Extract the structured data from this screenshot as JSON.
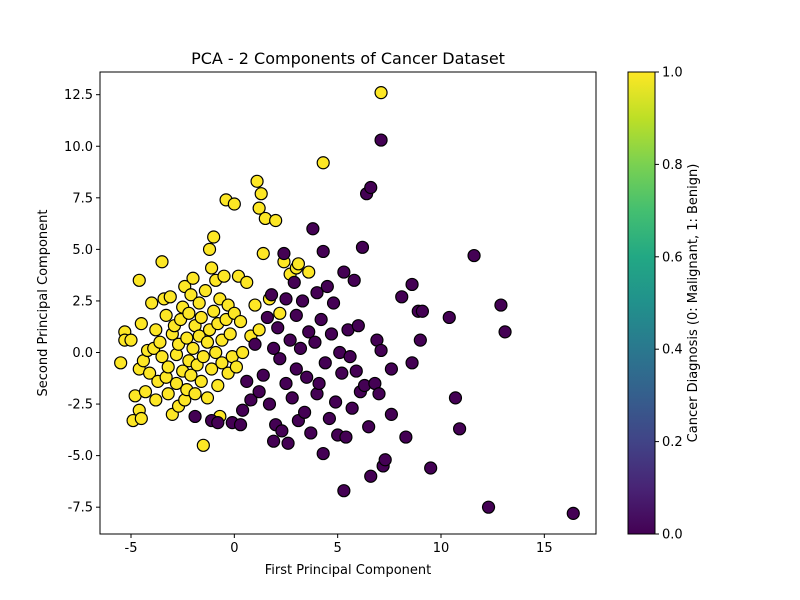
{
  "chart_data": {
    "type": "scatter",
    "title": "PCA - 2 Components of Cancer Dataset",
    "xlabel": "First Principal Component",
    "ylabel": "Second Principal Component",
    "xlim": [
      -6.5,
      17.5
    ],
    "ylim": [
      -8.8,
      13.6
    ],
    "xticks": [
      -5,
      0,
      5,
      10,
      15
    ],
    "yticks": [
      -7.5,
      -5.0,
      -2.5,
      0.0,
      2.5,
      5.0,
      7.5,
      10.0,
      12.5
    ],
    "grid": false,
    "colorbar": {
      "label": "Cancer Diagnosis (0: Malignant, 1: Benign)",
      "colormap": "viridis",
      "range": [
        0.0,
        1.0
      ],
      "ticks": [
        0.0,
        0.2,
        0.4,
        0.6,
        0.8,
        1.0
      ]
    },
    "series": [
      {
        "class_value": 1,
        "color": "#fde725",
        "points": [
          [
            -5.5,
            -0.5
          ],
          [
            -5.3,
            1.0
          ],
          [
            -5.3,
            0.6
          ],
          [
            -5.0,
            0.6
          ],
          [
            -4.9,
            -3.3
          ],
          [
            -4.8,
            -2.1
          ],
          [
            -4.6,
            -2.8
          ],
          [
            -4.5,
            -3.2
          ],
          [
            -4.6,
            3.5
          ],
          [
            -4.5,
            1.4
          ],
          [
            -4.6,
            -0.8
          ],
          [
            -4.4,
            -0.4
          ],
          [
            -4.3,
            -1.9
          ],
          [
            -4.2,
            0.1
          ],
          [
            -4.1,
            -1.0
          ],
          [
            -4.0,
            2.4
          ],
          [
            -3.9,
            0.2
          ],
          [
            -3.8,
            1.1
          ],
          [
            -3.8,
            -2.3
          ],
          [
            -3.7,
            -1.4
          ],
          [
            -3.6,
            0.5
          ],
          [
            -3.5,
            -0.2
          ],
          [
            -3.5,
            4.4
          ],
          [
            -3.4,
            2.6
          ],
          [
            -3.3,
            1.8
          ],
          [
            -3.3,
            -1.2
          ],
          [
            -3.2,
            -0.7
          ],
          [
            -3.2,
            -2.0
          ],
          [
            -3.1,
            2.7
          ],
          [
            -3.0,
            0.9
          ],
          [
            -3.0,
            -3.0
          ],
          [
            -2.9,
            1.3
          ],
          [
            -2.8,
            -0.1
          ],
          [
            -2.8,
            -1.5
          ],
          [
            -2.7,
            0.4
          ],
          [
            -2.7,
            -2.6
          ],
          [
            -2.6,
            1.6
          ],
          [
            -2.5,
            2.2
          ],
          [
            -2.5,
            -0.9
          ],
          [
            -2.4,
            3.2
          ],
          [
            -2.4,
            -2.3
          ],
          [
            -2.3,
            0.7
          ],
          [
            -2.3,
            -1.8
          ],
          [
            -2.2,
            1.9
          ],
          [
            -2.2,
            -0.4
          ],
          [
            -2.1,
            2.8
          ],
          [
            -2.1,
            -1.1
          ],
          [
            -2.0,
            0.2
          ],
          [
            -2.0,
            3.6
          ],
          [
            -1.9,
            1.3
          ],
          [
            -1.9,
            -2.0
          ],
          [
            -1.8,
            -0.6
          ],
          [
            -1.7,
            2.4
          ],
          [
            -1.7,
            0.8
          ],
          [
            -1.6,
            -1.4
          ],
          [
            -1.6,
            1.7
          ],
          [
            -1.5,
            -4.5
          ],
          [
            -1.5,
            -0.2
          ],
          [
            -1.4,
            3.0
          ],
          [
            -1.3,
            0.5
          ],
          [
            -1.3,
            -2.2
          ],
          [
            -1.2,
            1.1
          ],
          [
            -1.2,
            5.0
          ],
          [
            -1.1,
            4.1
          ],
          [
            -1.1,
            -0.8
          ],
          [
            -1.0,
            5.6
          ],
          [
            -1.0,
            2.0
          ],
          [
            -0.9,
            0.0
          ],
          [
            -0.9,
            3.5
          ],
          [
            -0.8,
            -1.6
          ],
          [
            -0.8,
            1.4
          ],
          [
            -0.7,
            -3.1
          ],
          [
            -0.7,
            2.6
          ],
          [
            -0.6,
            0.6
          ],
          [
            -0.6,
            -0.5
          ],
          [
            -0.5,
            3.7
          ],
          [
            -0.4,
            1.6
          ],
          [
            -0.4,
            7.4
          ],
          [
            -0.3,
            -1.0
          ],
          [
            -0.3,
            2.3
          ],
          [
            -0.2,
            0.9
          ],
          [
            -0.1,
            -0.2
          ],
          [
            0.0,
            7.2
          ],
          [
            0.0,
            1.9
          ],
          [
            0.1,
            -0.7
          ],
          [
            0.2,
            3.7
          ],
          [
            0.3,
            1.5
          ],
          [
            0.4,
            0.0
          ],
          [
            0.6,
            3.4
          ],
          [
            0.8,
            0.8
          ],
          [
            1.0,
            2.3
          ],
          [
            1.1,
            8.3
          ],
          [
            1.2,
            7.0
          ],
          [
            1.2,
            1.1
          ],
          [
            1.3,
            7.7
          ],
          [
            1.4,
            4.8
          ],
          [
            1.5,
            6.5
          ],
          [
            1.7,
            2.6
          ],
          [
            2.0,
            6.4
          ],
          [
            2.2,
            1.9
          ],
          [
            2.4,
            4.4
          ],
          [
            2.7,
            3.8
          ],
          [
            3.0,
            4.1
          ],
          [
            3.1,
            4.3
          ],
          [
            3.6,
            3.9
          ],
          [
            4.3,
            9.2
          ],
          [
            7.1,
            12.6
          ]
        ]
      },
      {
        "class_value": 0,
        "color": "#440154",
        "points": [
          [
            -1.9,
            -3.1
          ],
          [
            -1.1,
            -3.3
          ],
          [
            -0.8,
            -3.4
          ],
          [
            -0.1,
            -3.4
          ],
          [
            0.3,
            -3.5
          ],
          [
            0.4,
            -2.8
          ],
          [
            0.6,
            -1.4
          ],
          [
            0.8,
            -2.3
          ],
          [
            1.0,
            0.4
          ],
          [
            1.2,
            -1.9
          ],
          [
            1.4,
            -1.1
          ],
          [
            1.6,
            1.7
          ],
          [
            1.7,
            -2.5
          ],
          [
            1.8,
            2.8
          ],
          [
            1.9,
            -4.3
          ],
          [
            1.9,
            0.2
          ],
          [
            2.0,
            -3.5
          ],
          [
            2.1,
            1.2
          ],
          [
            2.2,
            -0.3
          ],
          [
            2.3,
            -3.8
          ],
          [
            2.4,
            4.8
          ],
          [
            2.5,
            -1.5
          ],
          [
            2.5,
            2.6
          ],
          [
            2.6,
            -4.4
          ],
          [
            2.7,
            0.6
          ],
          [
            2.8,
            -2.2
          ],
          [
            2.9,
            3.4
          ],
          [
            3.0,
            1.8
          ],
          [
            3.0,
            -0.8
          ],
          [
            3.1,
            -3.3
          ],
          [
            3.2,
            0.2
          ],
          [
            3.3,
            2.5
          ],
          [
            3.4,
            -2.9
          ],
          [
            3.5,
            -1.2
          ],
          [
            3.6,
            1.0
          ],
          [
            3.7,
            -3.9
          ],
          [
            3.8,
            6.0
          ],
          [
            3.9,
            0.5
          ],
          [
            4.0,
            2.9
          ],
          [
            4.0,
            -2.0
          ],
          [
            4.1,
            -1.5
          ],
          [
            4.2,
            1.6
          ],
          [
            4.3,
            -4.9
          ],
          [
            4.3,
            4.9
          ],
          [
            4.4,
            -0.5
          ],
          [
            4.5,
            3.2
          ],
          [
            4.6,
            -3.2
          ],
          [
            4.7,
            0.9
          ],
          [
            4.8,
            2.4
          ],
          [
            4.9,
            -2.4
          ],
          [
            5.0,
            -4.0
          ],
          [
            5.1,
            0.0
          ],
          [
            5.2,
            -1.0
          ],
          [
            5.3,
            3.9
          ],
          [
            5.3,
            -6.7
          ],
          [
            5.4,
            -4.1
          ],
          [
            5.5,
            1.1
          ],
          [
            5.6,
            -0.2
          ],
          [
            5.7,
            -2.7
          ],
          [
            5.8,
            3.5
          ],
          [
            5.9,
            -0.9
          ],
          [
            6.0,
            1.3
          ],
          [
            6.1,
            -1.9
          ],
          [
            6.2,
            5.1
          ],
          [
            6.3,
            -1.6
          ],
          [
            6.4,
            7.7
          ],
          [
            6.5,
            -3.6
          ],
          [
            6.6,
            8.0
          ],
          [
            6.6,
            -6.0
          ],
          [
            6.8,
            -1.5
          ],
          [
            6.9,
            0.6
          ],
          [
            7.0,
            -2.0
          ],
          [
            7.1,
            10.3
          ],
          [
            7.1,
            0.1
          ],
          [
            7.2,
            -5.5
          ],
          [
            7.3,
            -5.2
          ],
          [
            7.6,
            -0.8
          ],
          [
            7.6,
            -3.0
          ],
          [
            8.1,
            2.7
          ],
          [
            8.3,
            -4.1
          ],
          [
            8.6,
            3.3
          ],
          [
            8.6,
            -0.5
          ],
          [
            8.9,
            2.0
          ],
          [
            9.0,
            0.6
          ],
          [
            9.1,
            2.0
          ],
          [
            9.5,
            -5.6
          ],
          [
            10.4,
            1.7
          ],
          [
            10.7,
            -2.2
          ],
          [
            10.9,
            -3.7
          ],
          [
            11.6,
            4.7
          ],
          [
            12.3,
            -7.5
          ],
          [
            12.9,
            2.3
          ],
          [
            13.1,
            1.0
          ],
          [
            16.4,
            -7.8
          ]
        ]
      }
    ]
  }
}
